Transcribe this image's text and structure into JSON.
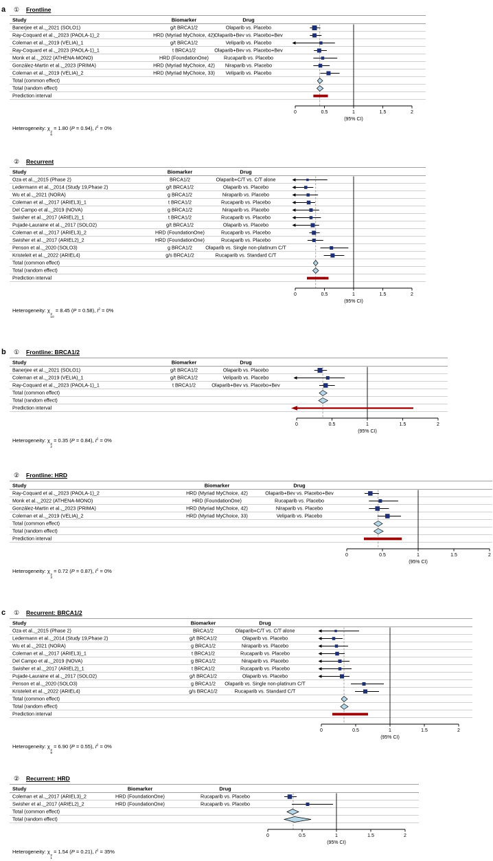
{
  "labels": {
    "het_prefix": "Heterogeneity: ",
    "chi": "χ",
    "sup_two": "2",
    "eq": " = ",
    "lparen": " (",
    "p": "P",
    "rparen_comma": "), ",
    "i": "I"
  },
  "colors": {
    "square": "#1c2f77",
    "diamond": "#b6d7e8",
    "prediction": "#990000",
    "ci_line": "#000000",
    "dashed_ref": "#909090"
  },
  "chart_data": [
    {
      "type": "forest",
      "panel": "a",
      "marker": "①",
      "title": "Frontline",
      "columns": [
        "Study",
        "Biomarker",
        "Drug"
      ],
      "axis": {
        "min": 0,
        "max": 2,
        "ref_line": 1,
        "ticks": [
          0,
          0.5,
          1,
          1.5,
          2
        ],
        "tick_labels": [
          "0",
          "0.5",
          "1",
          "1.5",
          "2"
        ],
        "label": "(95% CI)"
      },
      "dashed_ref": 0.42,
      "studies": [
        {
          "study": "Banerjee et al.,_2021 (SOLO1)",
          "biomarker": "g/t BRCA1/2",
          "drug": "Olaparib vs. Placebo",
          "hr": 0.33,
          "lo": 0.25,
          "hi": 0.43,
          "clip": false,
          "w": 7
        },
        {
          "study": "Ray-Coquard et al.,_2023 (PAOLA-1)_2",
          "biomarker": "HRD (Myriad MyChoice, 42)",
          "drug": "Olaparib+Bev vs. Placebo+Bev",
          "hr": 0.33,
          "lo": 0.25,
          "hi": 0.45,
          "clip": false,
          "w": 6
        },
        {
          "study": "Coleman et al.,_2019 (VELIA)_1",
          "biomarker": "g/t BRCA1/2",
          "drug": "Veliparib vs. Placebo",
          "hr": 0.44,
          "lo": 0.28,
          "hi": 0.68,
          "clip": true,
          "w": 4.5
        },
        {
          "study": "Ray-Coquard et al.,_2023 (PAOLA-1)_1",
          "biomarker": "t BRCA1/2",
          "drug": "Olaparib+Bev vs. Placebo+Bev",
          "hr": 0.41,
          "lo": 0.32,
          "hi": 0.54,
          "clip": false,
          "w": 6
        },
        {
          "study": "Monk et al.,_2022 (ATHENA-MONO)",
          "biomarker": "HRD (FoundationOne)",
          "drug": "Rucaparib vs. Placebo",
          "hr": 0.47,
          "lo": 0.31,
          "hi": 0.72,
          "clip": false,
          "w": 4.5
        },
        {
          "study": "González-Martin et al.,_2023 (PRIMA)",
          "biomarker": "HRD (Myriad MyChoice, 42)",
          "drug": "Niraparib vs. Placebo",
          "hr": 0.43,
          "lo": 0.31,
          "hi": 0.59,
          "clip": false,
          "w": 5.5
        },
        {
          "study": "Coleman et al.,_2019 (VELIA)_2",
          "biomarker": "HRD (Myriad MyChoice, 33)",
          "drug": "Veliparib vs. Placebo",
          "hr": 0.57,
          "lo": 0.43,
          "hi": 0.76,
          "clip": false,
          "w": 6
        }
      ],
      "totals": [
        {
          "label": "Total (common effect)",
          "hr": 0.42,
          "lo": 0.38,
          "hi": 0.47
        },
        {
          "label": "Total (random effect)",
          "hr": 0.42,
          "lo": 0.37,
          "hi": 0.48
        }
      ],
      "prediction": {
        "label": "Prediction interval",
        "lo": 0.31,
        "hi": 0.56,
        "clip": false
      },
      "heterogeneity": {
        "chi_df": "6",
        "chi_value": "1.80",
        "p_value": "0.94",
        "i2": "0%"
      }
    },
    {
      "type": "forest",
      "panel": "",
      "marker": "②",
      "title": "Recurrent",
      "columns": [
        "Study",
        "Biomarker",
        "Drug"
      ],
      "axis": {
        "min": 0,
        "max": 2,
        "ref_line": 1,
        "ticks": [
          0,
          0.5,
          1,
          1.5,
          2
        ],
        "tick_labels": [
          "0",
          "0.5",
          "1",
          "1.5",
          "2"
        ],
        "label": "(95% CI)"
      },
      "dashed_ref": 0.35,
      "studies": [
        {
          "study": "Oza et al.,_2015 (Phase 2)",
          "biomarker": "BRCA1/2",
          "drug": "Olaparib+C/T vs. C/T alone",
          "hr": 0.21,
          "lo": 0.08,
          "hi": 0.55,
          "clip": true,
          "w": 3.5
        },
        {
          "study": "Ledermann et al.,_2014 (Study 19,Phase 2)",
          "biomarker": "g/t BRCA1/2",
          "drug": "Olaparib vs. Placebo",
          "hr": 0.18,
          "lo": 0.1,
          "hi": 0.31,
          "clip": true,
          "w": 4.5
        },
        {
          "study": "Wu et al.,_2021 (NORA)",
          "biomarker": "g BRCA1/2",
          "drug": "Niraparib vs. Placebo",
          "hr": 0.22,
          "lo": 0.12,
          "hi": 0.39,
          "clip": true,
          "w": 4.5
        },
        {
          "study": "Coleman et al.,_2017 (ARIEL3)_1",
          "biomarker": "t BRCA1/2",
          "drug": "Rucaparib vs. Placebo",
          "hr": 0.23,
          "lo": 0.16,
          "hi": 0.34,
          "clip": true,
          "w": 5.5
        },
        {
          "study": "Del Campo et al.,_2019 (NOVA)",
          "biomarker": "g BRCA1/2",
          "drug": "Niraparib vs. Placebo",
          "hr": 0.27,
          "lo": 0.17,
          "hi": 0.41,
          "clip": true,
          "w": 5
        },
        {
          "study": "Swisher et al.,_2017 (ARIEL2)_1",
          "biomarker": "t BRCA1/2",
          "drug": "Rucaparib vs. Placebo",
          "hr": 0.27,
          "lo": 0.16,
          "hi": 0.44,
          "clip": true,
          "w": 4.5
        },
        {
          "study": "Pujade-Lauraine et al.,_2017 (SOLO2)",
          "biomarker": "g/t BRCA1/2",
          "drug": "Olaparib vs. Placebo",
          "hr": 0.3,
          "lo": 0.22,
          "hi": 0.41,
          "clip": true,
          "w": 6
        },
        {
          "study": "Coleman et al.,_2017 (ARIEL3)_2",
          "biomarker": "HRD (FoundationOne)",
          "drug": "Rucaparib vs. Placebo",
          "hr": 0.32,
          "lo": 0.24,
          "hi": 0.42,
          "clip": false,
          "w": 6
        },
        {
          "study": "Swisher et al.,_2017 (ARIEL2)_2",
          "biomarker": "HRD (FoundationOne)",
          "drug": "Rucaparib vs. Placebo",
          "hr": 0.32,
          "lo": 0.21,
          "hi": 0.48,
          "clip": false,
          "w": 5
        },
        {
          "study": "Penson et al.,_2020 (SOLO3)",
          "biomarker": "g BRCA1/2",
          "drug": "Olaparib vs. Single non-platinum C/T",
          "hr": 0.62,
          "lo": 0.43,
          "hi": 0.91,
          "clip": false,
          "w": 5
        },
        {
          "study": "Kristeleit et al.,_2022 (ARIEL4)",
          "biomarker": "g/s BRCA1/2",
          "drug": "Rucaparib vs. Standard C/T",
          "hr": 0.64,
          "lo": 0.49,
          "hi": 0.84,
          "clip": false,
          "w": 6
        }
      ],
      "totals": [
        {
          "label": "Total (common effect)",
          "hr": 0.35,
          "lo": 0.31,
          "hi": 0.39
        },
        {
          "label": "Total (random effect)",
          "hr": 0.35,
          "lo": 0.3,
          "hi": 0.4
        }
      ],
      "prediction": {
        "label": "Prediction interval",
        "lo": 0.2,
        "hi": 0.57,
        "clip": false
      },
      "heterogeneity": {
        "chi_df": "10",
        "chi_value": "8.45",
        "p_value": "0.58",
        "i2": "0%"
      }
    },
    {
      "type": "forest",
      "panel": "b",
      "marker": "①",
      "title": "Frontline: BRCA1/2",
      "columns": [
        "Study",
        "Biomarker",
        "Drug"
      ],
      "axis": {
        "min": 0,
        "max": 2,
        "ref_line": 1,
        "ticks": [
          0,
          0.5,
          1,
          1.5,
          2
        ],
        "tick_labels": [
          "0",
          "0.5",
          "1",
          "1.5",
          "2"
        ],
        "label": "(95% CI)"
      },
      "dashed_ref": 0.37,
      "studies": [
        {
          "study": "Banerjee et al.,_2021 (SOLO1)",
          "biomarker": "g/t BRCA1/2",
          "drug": "Olaparib vs. Placebo",
          "hr": 0.33,
          "lo": 0.25,
          "hi": 0.43,
          "clip": false,
          "w": 7
        },
        {
          "study": "Coleman et al.,_2019 (VELIA)_1",
          "biomarker": "g/t BRCA1/2",
          "drug": "Veliparib vs. Placebo",
          "hr": 0.44,
          "lo": 0.28,
          "hi": 0.68,
          "clip": true,
          "w": 5
        },
        {
          "study": "Ray-Coquard et al.,_2023 (PAOLA-1)_1",
          "biomarker": "t BRCA1/2",
          "drug": "Olaparib+Bev vs. Placebo+Bev",
          "hr": 0.41,
          "lo": 0.32,
          "hi": 0.54,
          "clip": false,
          "w": 6.5
        }
      ],
      "totals": [
        {
          "label": "Total (common effect)",
          "hr": 0.37,
          "lo": 0.32,
          "hi": 0.43
        },
        {
          "label": "Total (random effect)",
          "hr": 0.37,
          "lo": 0.31,
          "hi": 0.44
        }
      ],
      "prediction": {
        "label": "Prediction interval",
        "lo": 0,
        "hi": 1.65,
        "clip": true
      },
      "heterogeneity": {
        "chi_df": "2",
        "chi_value": "0.35",
        "p_value": "0.84",
        "i2": "0%"
      }
    },
    {
      "type": "forest",
      "panel": "",
      "marker": "②",
      "title": "Frontline: HRD",
      "columns": [
        "Study",
        "Biomarker",
        "Drug"
      ],
      "axis": {
        "min": 0,
        "max": 2,
        "ref_line": 1,
        "ticks": [
          0,
          0.5,
          1,
          1.5,
          2
        ],
        "tick_labels": [
          "0",
          "0.5",
          "1",
          "1.5",
          "2"
        ],
        "label": "(95% CI)"
      },
      "dashed_ref": 0.44,
      "studies": [
        {
          "study": "Ray-Coquard et al.,_2023 (PAOLA-1)_2",
          "biomarker": "HRD (Myriad MyChoice, 42)",
          "drug": "Olaparib+Bev vs. Placebo+Bev",
          "hr": 0.33,
          "lo": 0.25,
          "hi": 0.45,
          "clip": false,
          "w": 6.5
        },
        {
          "study": "Monk et al.,_2022 (ATHENA-MONO)",
          "biomarker": "HRD (FoundationOne)",
          "drug": "Rucaparib vs. Placebo",
          "hr": 0.47,
          "lo": 0.31,
          "hi": 0.72,
          "clip": false,
          "w": 5
        },
        {
          "study": "González-Martin et al.,_2023 (PRIMA)",
          "biomarker": "HRD (Myriad MyChoice, 42)",
          "drug": "Niraparib vs. Placebo",
          "hr": 0.43,
          "lo": 0.31,
          "hi": 0.59,
          "clip": false,
          "w": 6.5
        },
        {
          "study": "Coleman et al.,_2019 (VELIA)_2",
          "biomarker": "HRD (Myriad MyChoice, 33)",
          "drug": "Veliparib vs. Placebo",
          "hr": 0.57,
          "lo": 0.43,
          "hi": 0.76,
          "clip": false,
          "w": 6.5
        }
      ],
      "totals": [
        {
          "label": "Total (common effect)",
          "hr": 0.44,
          "lo": 0.38,
          "hi": 0.5
        },
        {
          "label": "Total (random effect)",
          "hr": 0.44,
          "lo": 0.38,
          "hi": 0.51
        }
      ],
      "prediction": {
        "label": "Prediction interval",
        "lo": 0.24,
        "hi": 0.77,
        "clip": false
      },
      "heterogeneity": {
        "chi_df": "3",
        "chi_value": "0.72",
        "p_value": "0.87",
        "i2": "0%"
      }
    },
    {
      "type": "forest",
      "panel": "c",
      "marker": "①",
      "title": "Recurrent: BRCA1/2",
      "columns": [
        "Study",
        "Biomarker",
        "Drug"
      ],
      "axis": {
        "min": 0,
        "max": 2,
        "ref_line": 1,
        "ticks": [
          0,
          0.5,
          1,
          1.5,
          2
        ],
        "tick_labels": [
          "0",
          "0.5",
          "1",
          "1.5",
          "2"
        ],
        "label": "(95% CI)"
      },
      "dashed_ref": 0.33,
      "studies": [
        {
          "study": "Oza et al.,_2015 (Phase 2)",
          "biomarker": "BRCA1/2",
          "drug": "Olaparib+C/T vs. C/T alone",
          "hr": 0.21,
          "lo": 0.08,
          "hi": 0.55,
          "clip": true,
          "w": 3.5
        },
        {
          "study": "Ledermann et al.,_2014 (Study 19,Phase 2)",
          "biomarker": "g/t BRCA1/2",
          "drug": "Olaparib vs. Placebo",
          "hr": 0.18,
          "lo": 0.1,
          "hi": 0.31,
          "clip": true,
          "w": 4.5
        },
        {
          "study": "Wu et al.,_2021 (NORA)",
          "biomarker": "g BRCA1/2",
          "drug": "Niraparib vs. Placebo",
          "hr": 0.22,
          "lo": 0.12,
          "hi": 0.39,
          "clip": true,
          "w": 4.5
        },
        {
          "study": "Coleman et al.,_2017 (ARIEL3)_1",
          "biomarker": "t BRCA1/2",
          "drug": "Rucaparib vs. Placebo",
          "hr": 0.23,
          "lo": 0.16,
          "hi": 0.34,
          "clip": true,
          "w": 5.5
        },
        {
          "study": "Del Campo et al.,_2019 (NOVA)",
          "biomarker": "g BRCA1/2",
          "drug": "Niraparib vs. Placebo",
          "hr": 0.27,
          "lo": 0.17,
          "hi": 0.41,
          "clip": true,
          "w": 5
        },
        {
          "study": "Swisher et al.,_2017 (ARIEL2)_1",
          "biomarker": "t BRCA1/2",
          "drug": "Rucaparib vs. Placebo",
          "hr": 0.27,
          "lo": 0.16,
          "hi": 0.44,
          "clip": true,
          "w": 4.5
        },
        {
          "study": "Pujade-Lauraine et al.,_2017 (SOLO2)",
          "biomarker": "g/t BRCA1/2",
          "drug": "Olaparib vs. Placebo",
          "hr": 0.3,
          "lo": 0.22,
          "hi": 0.41,
          "clip": true,
          "w": 6
        },
        {
          "study": "Penson et al.,_2020 (SOLO3)",
          "biomarker": "g BRCA1/2",
          "drug": "Olaparib vs. Single non-platinum C/T",
          "hr": 0.62,
          "lo": 0.43,
          "hi": 0.91,
          "clip": false,
          "w": 5
        },
        {
          "study": "Kristeleit et al.,_2022 (ARIEL4)",
          "biomarker": "g/s BRCA1/2",
          "drug": "Rucaparib vs. Standard C/T",
          "hr": 0.64,
          "lo": 0.49,
          "hi": 0.84,
          "clip": false,
          "w": 6
        }
      ],
      "totals": [
        {
          "label": "Total (common effect)",
          "hr": 0.33,
          "lo": 0.29,
          "hi": 0.38
        },
        {
          "label": "Total (random effect)",
          "hr": 0.33,
          "lo": 0.28,
          "hi": 0.39
        }
      ],
      "prediction": {
        "label": "Prediction interval",
        "lo": 0.16,
        "hi": 0.68,
        "clip": false
      },
      "heterogeneity": {
        "chi_df": "8",
        "chi_value": "6.90",
        "p_value": "0.55",
        "i2": "0%"
      }
    },
    {
      "type": "forest",
      "panel": "",
      "marker": "②",
      "title": "Recurrent: HRD",
      "columns": [
        "Study",
        "Biomarker",
        "Drug"
      ],
      "axis": {
        "min": 0,
        "max": 2,
        "ref_line": 1,
        "ticks": [
          0,
          0.5,
          1,
          1.5,
          2
        ],
        "tick_labels": [
          "0",
          "0.5",
          "1",
          "1.5",
          "2"
        ],
        "label": "(95% CI)"
      },
      "dashed_ref": 0.37,
      "studies": [
        {
          "study": "Coleman et al.,_2017 (ARIEL3)_2",
          "biomarker": "HRD (FoundationOne)",
          "drug": "Rucaparib vs. Placebo",
          "hr": 0.32,
          "lo": 0.24,
          "hi": 0.42,
          "clip": false,
          "w": 6.5
        },
        {
          "study": "Swisher et al.,_2017 (ARIEL2)_2",
          "biomarker": "HRD (FoundationOne)",
          "drug": "Rucaparib vs. Placebo",
          "hr": 0.58,
          "lo": 0.35,
          "hi": 0.95,
          "clip": false,
          "w": 5
        }
      ],
      "totals": [
        {
          "label": "Total (common effect)",
          "hr": 0.36,
          "lo": 0.28,
          "hi": 0.45
        },
        {
          "label": "Total (random effect)",
          "hr": 0.39,
          "lo": 0.24,
          "hi": 0.63
        }
      ],
      "prediction": null,
      "heterogeneity": {
        "chi_df": "1",
        "chi_value": "1.54",
        "p_value": "0.21",
        "i2": "35%"
      }
    }
  ]
}
